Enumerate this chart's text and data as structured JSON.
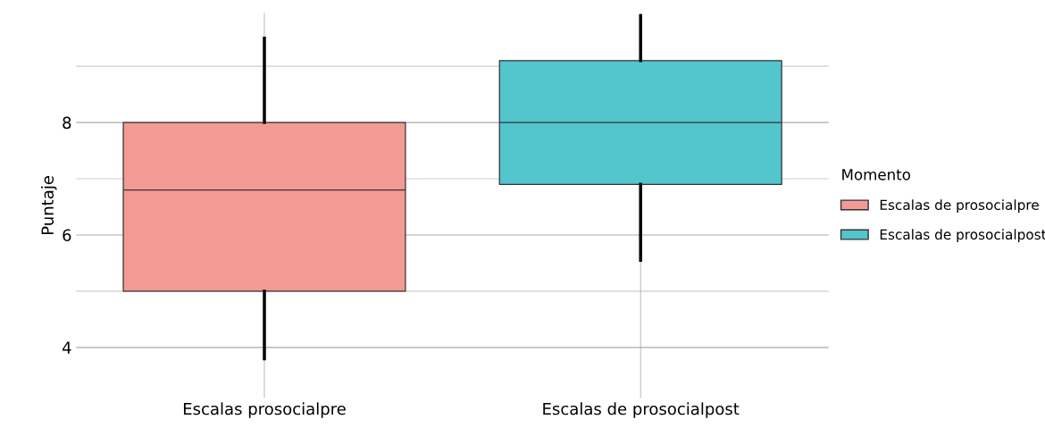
{
  "chart_data": {
    "type": "box",
    "ylabel": "Puntaje",
    "legend_title": "Momento",
    "legend": "right",
    "grid": true,
    "categories": [
      "Escalas prosocialpre",
      "Escalas de prosocialpost"
    ],
    "series": [
      {
        "name": "Escalas de prosocialpre",
        "color": "#f49a94",
        "boxes": [
          {
            "low": 3.8,
            "q1": 5.0,
            "median": 6.8,
            "q3": 8.0,
            "high": 9.5
          },
          null
        ]
      },
      {
        "name": "Escalas de prosocialpost",
        "color": "#53c5cd",
        "boxes": [
          null,
          {
            "low": 5.55,
            "q1": 6.9,
            "median": 8.0,
            "q3": 9.1,
            "high": 9.9
          }
        ]
      }
    ],
    "ylim": [
      3.1,
      9.95
    ],
    "yticks": [
      4,
      {
        "value": 5,
        "label": null
      },
      6,
      {
        "value": 7,
        "label": null
      },
      8,
      {
        "value": 9,
        "label": null
      }
    ]
  }
}
